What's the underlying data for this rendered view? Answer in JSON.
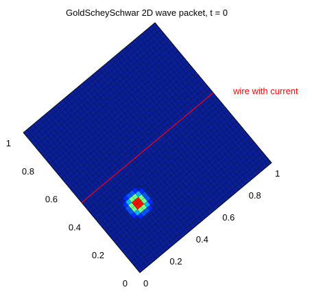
{
  "chart_data": {
    "type": "heatmap",
    "title": "GoldScheySchwar 2D wave packet, t = 0",
    "x_ticks": [
      "0",
      "0.2",
      "0.4",
      "0.6",
      "0.8",
      "1"
    ],
    "y_ticks": [
      "0",
      "0.2",
      "0.4",
      "0.6",
      "0.8",
      "1"
    ],
    "xlim": [
      0,
      1
    ],
    "ylim": [
      0,
      1
    ],
    "grid_size": 40,
    "colormap": "jet",
    "packet": {
      "x": 0.25,
      "y": 0.3,
      "width": 0.03,
      "peak": 1.0
    },
    "annotation": {
      "text": "wire with current",
      "color": "#ff0000",
      "line": {
        "x": [
          0.0,
          1.0
        ],
        "y": [
          0.5,
          0.5
        ]
      }
    },
    "background_color": "#0a1e96",
    "mesh_color": "#000000"
  }
}
